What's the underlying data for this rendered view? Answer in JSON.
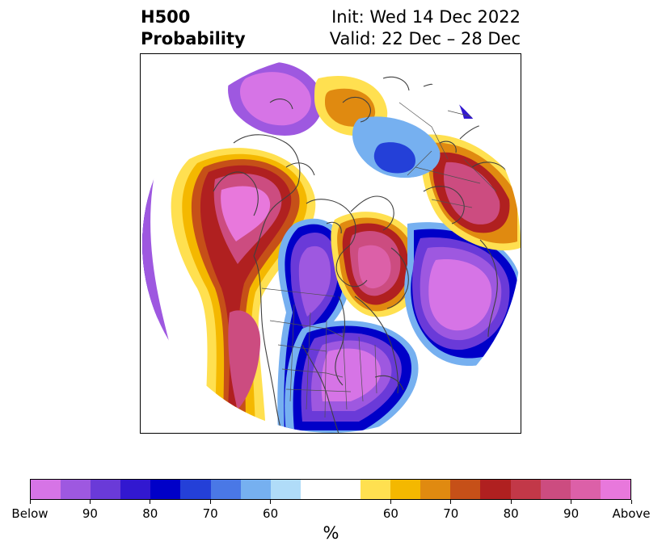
{
  "header": {
    "title_line1": "H500",
    "title_line2": "Probability",
    "init_line": "Init: Wed 14 Dec 2022",
    "valid_line": "Valid: 22 Dec – 28 Dec"
  },
  "map": {
    "projection": "polar stereographic",
    "features": [
      "coastlines",
      "country borders",
      "US state borders"
    ]
  },
  "colorbar": {
    "colors": [
      "#d674e6",
      "#9e58e0",
      "#6a3ad8",
      "#3218d0",
      "#0000c8",
      "#2440d8",
      "#4a78e6",
      "#76b0f0",
      "#b0dcf8",
      "#ffffff",
      "#ffffff",
      "#ffe050",
      "#f4b800",
      "#e08a10",
      "#c65018",
      "#b02020",
      "#c23848",
      "#cc4c80",
      "#dc60a8",
      "#e878dc"
    ],
    "tick_labels": [
      "Below",
      "90",
      "80",
      "70",
      "60",
      "60",
      "70",
      "80",
      "90",
      "Above"
    ],
    "units_label": "%"
  }
}
